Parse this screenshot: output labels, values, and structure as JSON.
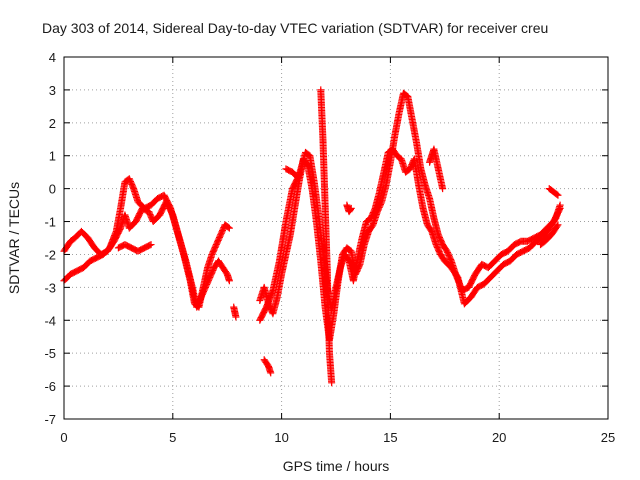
{
  "chart_data": {
    "type": "scatter",
    "title": "Day 303 of 2014, Sidereal Day-to-day VTEC variation (SDTVAR) for receiver creu",
    "xlabel": "GPS time / hours",
    "ylabel": "SDTVAR / TECUs",
    "xlim": [
      0,
      25
    ],
    "ylim": [
      -7,
      4
    ],
    "xticks": [
      0,
      5,
      10,
      15,
      20,
      25
    ],
    "yticks": [
      -7,
      -6,
      -5,
      -4,
      -3,
      -2,
      -1,
      0,
      1,
      2,
      3,
      4
    ],
    "grid": true,
    "marker": "+",
    "series": [
      {
        "name": "SDTVAR",
        "color": "#ff0000",
        "tracks": [
          [
            [
              0.0,
              -1.9
            ],
            [
              0.3,
              -1.6
            ],
            [
              0.5,
              -1.5
            ],
            [
              0.8,
              -1.3
            ],
            [
              1.1,
              -1.5
            ],
            [
              1.4,
              -1.8
            ],
            [
              1.7,
              -2.0
            ],
            [
              2.0,
              -1.9
            ],
            [
              2.3,
              -1.6
            ],
            [
              2.6,
              -1.2
            ],
            [
              2.8,
              -0.8
            ],
            [
              3.0,
              -1.2
            ],
            [
              3.3,
              -1.0
            ],
            [
              3.6,
              -0.6
            ],
            [
              3.9,
              -0.7
            ],
            [
              4.1,
              -1.0
            ],
            [
              4.4,
              -0.8
            ],
            [
              4.7,
              -0.4
            ],
            [
              5.0,
              -0.8
            ],
            [
              5.3,
              -1.5
            ],
            [
              5.6,
              -2.2
            ],
            [
              5.9,
              -3.0
            ],
            [
              6.1,
              -3.6
            ],
            [
              6.3,
              -3.3
            ],
            [
              6.5,
              -3.0
            ],
            [
              6.7,
              -2.7
            ],
            [
              6.9,
              -2.4
            ],
            [
              7.1,
              -2.2
            ],
            [
              7.3,
              -2.4
            ],
            [
              7.5,
              -2.6
            ],
            [
              7.6,
              -2.8
            ]
          ],
          [
            [
              0.0,
              -2.8
            ],
            [
              0.3,
              -2.6
            ],
            [
              0.6,
              -2.5
            ],
            [
              0.9,
              -2.4
            ],
            [
              1.2,
              -2.2
            ],
            [
              1.5,
              -2.1
            ],
            [
              1.8,
              -2.0
            ],
            [
              2.1,
              -1.8
            ],
            [
              2.4,
              -1.3
            ],
            [
              2.6,
              -0.6
            ],
            [
              2.8,
              0.2
            ],
            [
              3.0,
              0.3
            ],
            [
              3.2,
              0.0
            ],
            [
              3.4,
              -0.4
            ],
            [
              3.7,
              -0.6
            ],
            [
              4.0,
              -0.5
            ],
            [
              4.3,
              -0.3
            ],
            [
              4.6,
              -0.2
            ],
            [
              4.9,
              -0.6
            ],
            [
              5.2,
              -1.3
            ],
            [
              5.5,
              -2.0
            ],
            [
              5.8,
              -2.8
            ],
            [
              6.0,
              -3.5
            ],
            [
              6.2,
              -3.6
            ],
            [
              6.4,
              -3.0
            ],
            [
              6.6,
              -2.4
            ],
            [
              6.8,
              -2.0
            ],
            [
              7.0,
              -1.7
            ],
            [
              7.2,
              -1.4
            ],
            [
              7.4,
              -1.1
            ],
            [
              7.6,
              -1.2
            ]
          ],
          [
            [
              2.5,
              -1.8
            ],
            [
              2.8,
              -1.7
            ],
            [
              3.1,
              -1.8
            ],
            [
              3.4,
              -1.9
            ],
            [
              3.7,
              -1.8
            ],
            [
              4.0,
              -1.7
            ]
          ],
          [
            [
              9.0,
              -3.4
            ],
            [
              9.2,
              -3.0
            ],
            [
              9.4,
              -3.5
            ],
            [
              9.6,
              -3.8
            ],
            [
              9.8,
              -3.3
            ],
            [
              10.0,
              -2.6
            ],
            [
              10.2,
              -2.0
            ],
            [
              10.4,
              -1.4
            ],
            [
              10.6,
              -0.6
            ],
            [
              10.8,
              0.2
            ],
            [
              11.0,
              0.9
            ],
            [
              11.2,
              0.7
            ],
            [
              11.4,
              0.0
            ],
            [
              11.6,
              -1.0
            ],
            [
              11.8,
              -2.2
            ],
            [
              12.0,
              -3.6
            ],
            [
              12.2,
              -4.6
            ],
            [
              12.4,
              -3.8
            ],
            [
              12.6,
              -2.8
            ],
            [
              12.8,
              -2.0
            ],
            [
              13.0,
              -1.8
            ],
            [
              13.2,
              -1.9
            ],
            [
              13.4,
              -2.6
            ],
            [
              13.6,
              -2.3
            ],
            [
              13.8,
              -1.7
            ],
            [
              14.0,
              -1.3
            ],
            [
              14.2,
              -1.1
            ],
            [
              14.4,
              -0.7
            ],
            [
              14.6,
              -0.4
            ],
            [
              14.8,
              0.1
            ],
            [
              15.0,
              0.8
            ],
            [
              15.2,
              1.6
            ],
            [
              15.4,
              2.3
            ],
            [
              15.6,
              2.9
            ],
            [
              15.8,
              2.8
            ],
            [
              16.0,
              2.1
            ],
            [
              16.2,
              1.4
            ],
            [
              16.4,
              0.6
            ],
            [
              16.6,
              0.1
            ],
            [
              16.8,
              -0.3
            ],
            [
              17.0,
              -0.9
            ],
            [
              17.2,
              -1.4
            ],
            [
              17.4,
              -1.7
            ],
            [
              17.6,
              -1.9
            ],
            [
              17.8,
              -2.2
            ],
            [
              18.0,
              -2.6
            ],
            [
              18.3,
              -3.1
            ],
            [
              18.6,
              -3.0
            ],
            [
              18.9,
              -2.6
            ],
            [
              19.2,
              -2.3
            ],
            [
              19.5,
              -2.4
            ],
            [
              19.8,
              -2.2
            ],
            [
              20.1,
              -2.0
            ],
            [
              20.4,
              -1.9
            ],
            [
              20.7,
              -1.7
            ],
            [
              21.0,
              -1.6
            ],
            [
              21.3,
              -1.6
            ],
            [
              21.6,
              -1.5
            ],
            [
              21.9,
              -1.4
            ],
            [
              22.2,
              -1.2
            ],
            [
              22.5,
              -1.0
            ],
            [
              22.8,
              -0.6
            ]
          ],
          [
            [
              9.0,
              -4.0
            ],
            [
              9.3,
              -3.6
            ],
            [
              9.6,
              -3.1
            ],
            [
              9.9,
              -2.2
            ],
            [
              10.2,
              -1.0
            ],
            [
              10.5,
              0.0
            ],
            [
              10.8,
              0.4
            ],
            [
              11.1,
              1.1
            ],
            [
              11.3,
              1.0
            ],
            [
              11.5,
              0.2
            ],
            [
              11.7,
              -0.8
            ],
            [
              11.9,
              -1.9
            ],
            [
              12.1,
              -3.0
            ],
            [
              12.3,
              -3.7
            ],
            [
              12.5,
              -3.0
            ],
            [
              12.7,
              -2.4
            ],
            [
              12.9,
              -2.0
            ],
            [
              13.1,
              -2.2
            ],
            [
              13.3,
              -2.8
            ],
            [
              13.5,
              -2.1
            ],
            [
              13.7,
              -1.5
            ],
            [
              13.9,
              -1.0
            ],
            [
              14.1,
              -0.9
            ],
            [
              14.3,
              -0.6
            ],
            [
              14.5,
              -0.1
            ],
            [
              14.7,
              0.5
            ],
            [
              14.9,
              1.1
            ],
            [
              15.1,
              1.2
            ],
            [
              15.3,
              1.0
            ],
            [
              15.5,
              0.9
            ],
            [
              15.7,
              0.5
            ],
            [
              15.9,
              0.6
            ],
            [
              16.1,
              0.9
            ],
            [
              16.3,
              0.1
            ],
            [
              16.5,
              -0.6
            ],
            [
              16.7,
              -1.1
            ],
            [
              16.9,
              -1.3
            ],
            [
              17.1,
              -1.7
            ],
            [
              17.3,
              -2.0
            ],
            [
              17.5,
              -2.2
            ],
            [
              17.8,
              -2.4
            ],
            [
              18.1,
              -2.7
            ],
            [
              18.4,
              -3.5
            ],
            [
              18.7,
              -3.3
            ],
            [
              19.0,
              -3.0
            ],
            [
              19.3,
              -2.9
            ],
            [
              19.6,
              -2.7
            ],
            [
              19.9,
              -2.5
            ],
            [
              20.2,
              -2.3
            ],
            [
              20.5,
              -2.2
            ],
            [
              20.8,
              -2.0
            ],
            [
              21.1,
              -1.9
            ],
            [
              21.4,
              -1.8
            ],
            [
              21.7,
              -1.6
            ],
            [
              22.0,
              -1.5
            ],
            [
              22.3,
              -1.2
            ],
            [
              22.6,
              -0.9
            ],
            [
              22.8,
              -0.5
            ]
          ],
          [
            [
              10.2,
              0.6
            ],
            [
              10.5,
              0.5
            ],
            [
              10.8,
              0.3
            ]
          ],
          [
            [
              11.8,
              3.0
            ],
            [
              11.9,
              1.5
            ],
            [
              12.0,
              -0.5
            ],
            [
              12.1,
              -2.5
            ],
            [
              12.15,
              -4.0
            ],
            [
              12.2,
              -5.0
            ],
            [
              12.3,
              -5.9
            ]
          ],
          [
            [
              9.2,
              -5.2
            ],
            [
              9.4,
              -5.4
            ],
            [
              9.5,
              -5.6
            ]
          ],
          [
            [
              7.8,
              -3.6
            ],
            [
              7.9,
              -3.9
            ]
          ],
          [
            [
              21.9,
              -1.7
            ],
            [
              22.1,
              -1.6
            ],
            [
              22.4,
              -1.4
            ],
            [
              22.7,
              -1.1
            ]
          ],
          [
            [
              22.3,
              0.0
            ],
            [
              22.5,
              -0.1
            ],
            [
              22.7,
              -0.2
            ]
          ],
          [
            [
              16.8,
              0.8
            ],
            [
              16.9,
              1.0
            ],
            [
              17.0,
              1.2
            ],
            [
              17.2,
              0.6
            ],
            [
              17.4,
              0.0
            ]
          ],
          [
            [
              13.0,
              -0.5
            ],
            [
              13.1,
              -0.7
            ],
            [
              13.2,
              -0.6
            ]
          ]
        ]
      }
    ]
  }
}
